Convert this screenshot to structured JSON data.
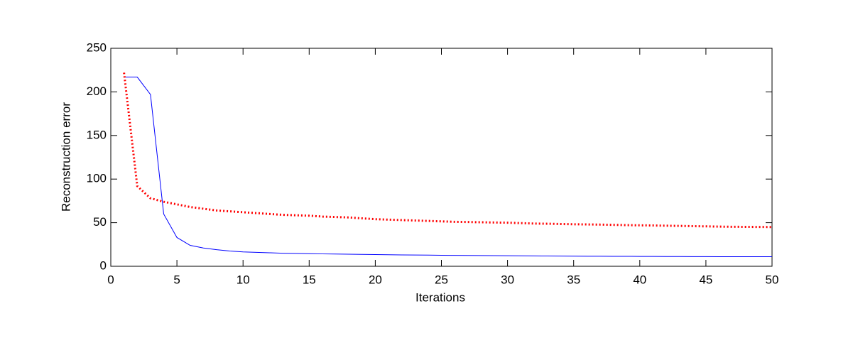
{
  "chart_data": {
    "type": "line",
    "xlabel": "Iterations",
    "ylabel": "Reconstruction error",
    "x": [
      1,
      2,
      3,
      4,
      5,
      6,
      7,
      8,
      9,
      10,
      11,
      12,
      13,
      14,
      15,
      16,
      17,
      18,
      19,
      20,
      21,
      22,
      23,
      24,
      25,
      26,
      27,
      28,
      29,
      30,
      31,
      32,
      33,
      34,
      35,
      36,
      37,
      38,
      39,
      40,
      41,
      42,
      43,
      44,
      45,
      46,
      47,
      48,
      49,
      50
    ],
    "series": [
      {
        "color": "#0000ff",
        "style": "solid",
        "values": [
          217,
          217,
          197,
          60,
          33,
          24,
          21,
          19,
          17.5,
          16.5,
          16,
          15.5,
          15,
          14.8,
          14.5,
          14.2,
          14,
          13.8,
          13.6,
          13.4,
          13.2,
          13,
          12.9,
          12.8,
          12.6,
          12.5,
          12.4,
          12.3,
          12.2,
          12.1,
          12,
          11.9,
          11.8,
          11.7,
          11.6,
          11.5,
          11.5,
          11.4,
          11.4,
          11.3,
          11.3,
          11.2,
          11.2,
          11.1,
          11.1,
          11,
          11,
          11,
          11,
          11
        ]
      },
      {
        "color": "#ff0000",
        "style": "dotted",
        "values": [
          222,
          92,
          78,
          74,
          71,
          68,
          66,
          64,
          63,
          62,
          61,
          60,
          59,
          58.5,
          58,
          57,
          56.5,
          56,
          55,
          54,
          53.5,
          53,
          52.5,
          52,
          51.5,
          51,
          50.8,
          50.5,
          50.2,
          50,
          49.5,
          49,
          48.8,
          48.5,
          48.2,
          48,
          47.8,
          47.5,
          47.2,
          47,
          46.8,
          46.5,
          46.3,
          46,
          45.8,
          45.5,
          45.3,
          45.2,
          45.1,
          45
        ]
      }
    ],
    "xlim": [
      0,
      50
    ],
    "xticks": [
      0,
      5,
      10,
      15,
      20,
      25,
      30,
      35,
      40,
      45,
      50
    ],
    "ylim": [
      0,
      250
    ],
    "yticks": [
      0,
      50,
      100,
      150,
      200,
      250
    ],
    "grid": false
  }
}
